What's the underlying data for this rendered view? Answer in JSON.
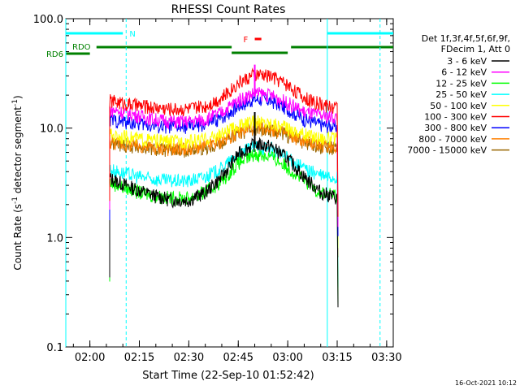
{
  "chart_data": {
    "type": "line",
    "title": "RHESSI Count Rates",
    "xlabel": "Start Time (22-Sep-10 01:52:42)",
    "ylabel": "Count Rate (s",
    "ylabel_sup": "-1",
    "ylabel_mid": " detector segment",
    "ylabel_end": ")",
    "y_scale": "log",
    "xlim": [
      "01:52:42",
      "03:32:00"
    ],
    "ylim": [
      0.1,
      100.0
    ],
    "x_ticks": [
      "02:00",
      "02:15",
      "02:30",
      "02:45",
      "03:00",
      "03:15",
      "03:30"
    ],
    "y_ticks": [
      "0.1",
      "1.0",
      "10.0",
      "100.0"
    ],
    "legend_header": [
      "Det 1f,3f,4f,5f,6f,9f,",
      "FDecim 1, Att 0"
    ],
    "legend_placement": "right",
    "series": [
      {
        "name": "3 - 6 keV",
        "color": "#000000",
        "x": [
          "02:05",
          "02:10",
          "02:15",
          "02:20",
          "02:25",
          "02:30",
          "02:35",
          "02:40",
          "02:45",
          "02:50",
          "02:55",
          "03:00",
          "03:05",
          "03:10",
          "03:15"
        ],
        "values": [
          3.6,
          3.1,
          2.7,
          2.4,
          2.2,
          2.2,
          2.6,
          3.6,
          5.8,
          7.2,
          6.8,
          5.3,
          3.6,
          2.6,
          2.3
        ]
      },
      {
        "name": "6 - 12 keV",
        "color": "#ff00ff",
        "x": [
          "02:05",
          "02:10",
          "02:15",
          "02:20",
          "02:25",
          "02:30",
          "02:35",
          "02:40",
          "02:45",
          "02:50",
          "02:55",
          "03:00",
          "03:05",
          "03:10",
          "03:15"
        ],
        "values": [
          15,
          14,
          13,
          12,
          11.5,
          11.5,
          12,
          14,
          18,
          21,
          20,
          17,
          14,
          13,
          12.5
        ]
      },
      {
        "name": "12 - 25 keV",
        "color": "#00ff00",
        "x": [
          "02:05",
          "02:10",
          "02:15",
          "02:20",
          "02:25",
          "02:30",
          "02:35",
          "02:40",
          "02:45",
          "02:50",
          "02:55",
          "03:00",
          "03:05",
          "03:10",
          "03:15"
        ],
        "values": [
          3.3,
          2.9,
          2.6,
          2.4,
          2.3,
          2.3,
          2.6,
          3.3,
          4.8,
          5.8,
          5.5,
          4.4,
          3.3,
          2.6,
          2.4
        ]
      },
      {
        "name": "25 - 50 keV",
        "color": "#00ffff",
        "x": [
          "02:05",
          "02:10",
          "02:15",
          "02:20",
          "02:25",
          "02:30",
          "02:35",
          "02:40",
          "02:45",
          "02:50",
          "02:55",
          "03:00",
          "03:05",
          "03:10",
          "03:15"
        ],
        "values": [
          4.3,
          3.9,
          3.6,
          3.4,
          3.3,
          3.3,
          3.6,
          4.3,
          5.8,
          6.8,
          6.5,
          5.3,
          4.3,
          3.7,
          3.5
        ]
      },
      {
        "name": "50 - 100 keV",
        "color": "#ffff00",
        "x": [
          "02:05",
          "02:10",
          "02:15",
          "02:20",
          "02:25",
          "02:30",
          "02:35",
          "02:40",
          "02:45",
          "02:50",
          "02:55",
          "03:00",
          "03:05",
          "03:10",
          "03:15"
        ],
        "values": [
          8.8,
          8.4,
          8.0,
          7.7,
          7.6,
          7.6,
          7.9,
          8.8,
          10.5,
          11.5,
          11.2,
          10,
          8.8,
          8.2,
          8.0
        ]
      },
      {
        "name": "100 - 300 keV",
        "color": "#ff0000",
        "x": [
          "02:05",
          "02:10",
          "02:15",
          "02:20",
          "02:25",
          "02:30",
          "02:35",
          "02:40",
          "02:45",
          "02:50",
          "02:55",
          "03:00",
          "03:05",
          "03:10",
          "03:15"
        ],
        "values": [
          18,
          17,
          16,
          15.5,
          15,
          15,
          16,
          19,
          26,
          31,
          30,
          25,
          19,
          16.5,
          15.5
        ]
      },
      {
        "name": "300 - 800 keV",
        "color": "#0000ff",
        "x": [
          "02:05",
          "02:10",
          "02:15",
          "02:20",
          "02:25",
          "02:30",
          "02:35",
          "02:40",
          "02:45",
          "02:50",
          "02:55",
          "03:00",
          "03:05",
          "03:10",
          "03:15"
        ],
        "values": [
          12,
          11.5,
          11,
          10.5,
          10.3,
          10.3,
          10.8,
          12.5,
          16,
          18.5,
          17.8,
          15,
          12,
          10.8,
          10.3
        ]
      },
      {
        "name": "800 - 7000 keV",
        "color": "#ff8000",
        "x": [
          "02:05",
          "02:10",
          "02:15",
          "02:20",
          "02:25",
          "02:30",
          "02:35",
          "02:40",
          "02:45",
          "02:50",
          "02:55",
          "03:00",
          "03:05",
          "03:10",
          "03:15"
        ],
        "values": [
          7.6,
          7.2,
          6.9,
          6.6,
          6.5,
          6.5,
          6.8,
          7.6,
          9.2,
          10.2,
          9.9,
          8.8,
          7.6,
          7.0,
          6.8
        ]
      },
      {
        "name": "7000 - 15000 keV",
        "color": "#996600",
        "x": [
          "02:05",
          "02:10",
          "02:15",
          "02:20",
          "02:25",
          "02:30",
          "02:35",
          "02:40",
          "02:45",
          "02:50",
          "02:55",
          "03:00",
          "03:05",
          "03:10",
          "03:15"
        ],
        "values": [
          7.4,
          7.0,
          6.7,
          6.4,
          6.3,
          6.3,
          6.6,
          7.4,
          9.0,
          10.0,
          9.7,
          8.6,
          7.4,
          6.8,
          6.6
        ]
      }
    ],
    "spikes": [
      {
        "series": "6 - 12 keV",
        "x": "02:50",
        "value": 38
      },
      {
        "series": "3 - 6 keV",
        "x": "02:50",
        "value": 14
      }
    ],
    "vertical_lines": [
      {
        "x": "01:52:42",
        "style": "solid",
        "color": "#00ffff"
      },
      {
        "x": "02:11",
        "style": "dashed",
        "color": "#00ffff"
      },
      {
        "x": "03:12",
        "style": "solid",
        "color": "#00ffff"
      },
      {
        "x": "03:28",
        "style": "dashed",
        "color": "#00ffff"
      }
    ],
    "flag_bars": [
      {
        "label": "N",
        "color": "#00ffff",
        "segments": [
          [
            "01:52:42",
            "02:10"
          ],
          [
            "03:12",
            "03:32"
          ]
        ]
      },
      {
        "label": "RDO",
        "color": "#008000",
        "segments": [
          [
            "02:02",
            "02:43"
          ],
          [
            "03:01",
            "03:32"
          ]
        ]
      },
      {
        "label": "RD6",
        "color": "#008000",
        "segments": [
          [
            "01:52:42",
            "02:00"
          ]
        ]
      },
      {
        "label": "F",
        "color": "#ff0000",
        "segments": [
          [
            "02:50",
            "02:52"
          ]
        ]
      },
      {
        "label": "",
        "color": "#008000",
        "segments": [
          [
            "02:43",
            "03:00"
          ]
        ]
      }
    ],
    "grid": false
  },
  "footer": {
    "timestamp": "16-Oct-2021 10:12"
  }
}
